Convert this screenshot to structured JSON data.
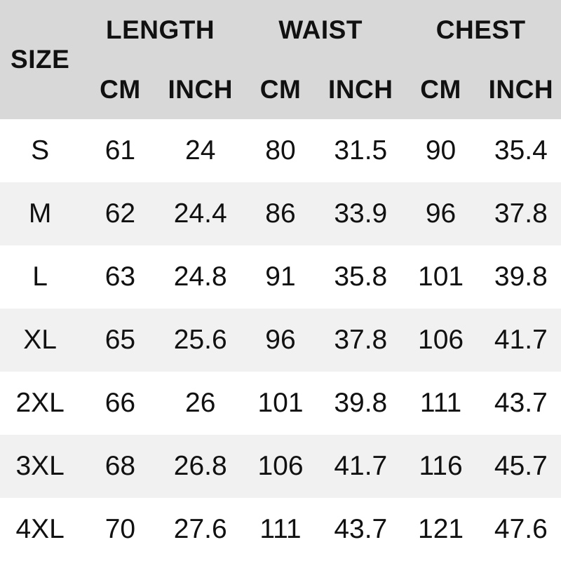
{
  "chart_data": {
    "type": "table",
    "column_groups": [
      "LENGTH",
      "WAIST",
      "CHEST"
    ],
    "columns": [
      "SIZE",
      "LENGTH CM",
      "LENGTH INCH",
      "WAIST CM",
      "WAIST INCH",
      "CHEST CM",
      "CHEST INCH"
    ],
    "rows": [
      [
        "S",
        61,
        24,
        80,
        31.5,
        90,
        35.4
      ],
      [
        "M",
        62,
        24.4,
        86,
        33.9,
        96,
        37.8
      ],
      [
        "L",
        63,
        24.8,
        91,
        35.8,
        101,
        39.8
      ],
      [
        "XL",
        65,
        25.6,
        96,
        37.8,
        106,
        41.7
      ],
      [
        "2XL",
        66,
        26,
        101,
        39.8,
        111,
        43.7
      ],
      [
        "3XL",
        68,
        26.8,
        106,
        41.7,
        116,
        45.7
      ],
      [
        "4XL",
        70,
        27.6,
        111,
        43.7,
        121,
        47.6
      ]
    ]
  },
  "header": {
    "size_label": "SIZE",
    "length_label": "LENGTH",
    "waist_label": "WAIST",
    "chest_label": "CHEST",
    "cm_label": "CM",
    "inch_label": "INCH"
  },
  "colors": {
    "header_bg": "#d8d8d8",
    "row_even_bg": "#f1f1f1",
    "row_odd_bg": "#ffffff",
    "text": "#111111"
  }
}
